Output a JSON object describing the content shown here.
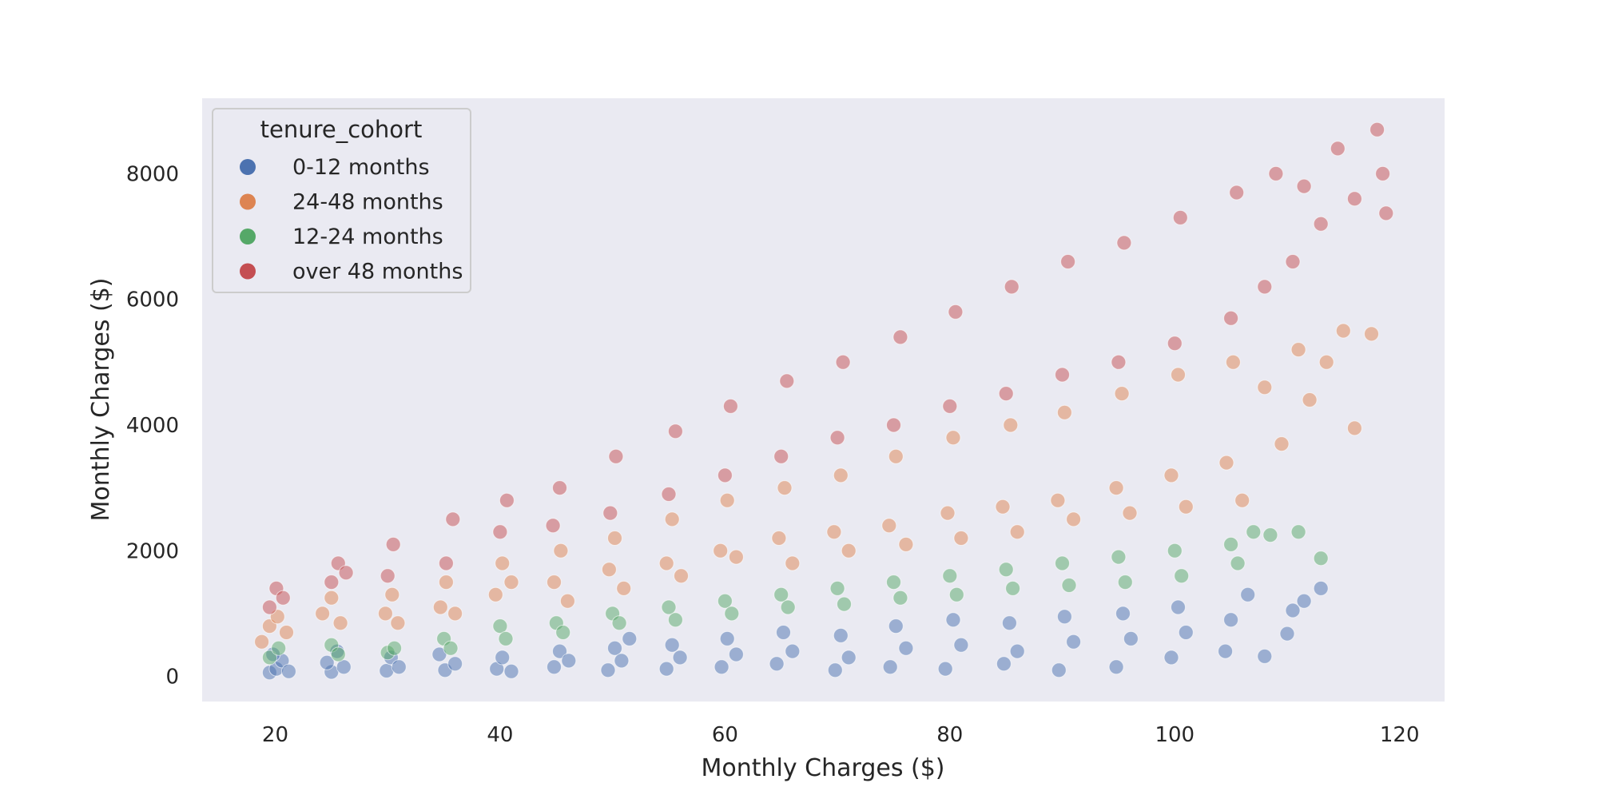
{
  "chart_data": {
    "type": "scatter",
    "xlabel": "Monthly Charges ($)",
    "ylabel": "Monthly Charges ($)",
    "xlim": [
      13.5,
      124
    ],
    "ylim": [
      -400,
      9200
    ],
    "xticks": [
      20,
      40,
      60,
      80,
      100,
      120
    ],
    "yticks": [
      0,
      2000,
      4000,
      6000,
      8000
    ],
    "grid": false,
    "legend": {
      "title": "tenure_cohort",
      "placement": "top-left",
      "entries": [
        "0-12 months",
        "24-48 months",
        "12-24 months",
        "over 48 months"
      ]
    },
    "point_alpha": 0.5,
    "series": [
      {
        "name": "0-12 months",
        "color": "#4c72b0",
        "points": [
          [
            19.5,
            60
          ],
          [
            20.1,
            120
          ],
          [
            20.6,
            250
          ],
          [
            21.2,
            80
          ],
          [
            19.8,
            350
          ],
          [
            25.0,
            70
          ],
          [
            24.6,
            220
          ],
          [
            25.5,
            400
          ],
          [
            26.1,
            150
          ],
          [
            29.9,
            90
          ],
          [
            30.3,
            300
          ],
          [
            31.0,
            150
          ],
          [
            35.1,
            100
          ],
          [
            34.6,
            350
          ],
          [
            36.0,
            200
          ],
          [
            39.7,
            120
          ],
          [
            40.2,
            300
          ],
          [
            41.0,
            80
          ],
          [
            44.8,
            150
          ],
          [
            45.3,
            400
          ],
          [
            46.1,
            250
          ],
          [
            49.6,
            100
          ],
          [
            50.2,
            450
          ],
          [
            50.8,
            250
          ],
          [
            51.5,
            600
          ],
          [
            54.8,
            120
          ],
          [
            55.3,
            500
          ],
          [
            56.0,
            300
          ],
          [
            59.7,
            150
          ],
          [
            60.2,
            600
          ],
          [
            61.0,
            350
          ],
          [
            64.6,
            200
          ],
          [
            65.2,
            700
          ],
          [
            66.0,
            400
          ],
          [
            69.8,
            100
          ],
          [
            70.3,
            650
          ],
          [
            71.0,
            300
          ],
          [
            74.7,
            150
          ],
          [
            75.2,
            800
          ],
          [
            76.1,
            450
          ],
          [
            79.6,
            120
          ],
          [
            80.3,
            900
          ],
          [
            81.0,
            500
          ],
          [
            84.8,
            200
          ],
          [
            85.3,
            850
          ],
          [
            86.0,
            400
          ],
          [
            89.7,
            100
          ],
          [
            90.2,
            950
          ],
          [
            91.0,
            550
          ],
          [
            94.8,
            150
          ],
          [
            95.4,
            1000
          ],
          [
            96.1,
            600
          ],
          [
            99.7,
            300
          ],
          [
            100.3,
            1100
          ],
          [
            101.0,
            700
          ],
          [
            104.5,
            400
          ],
          [
            105.0,
            900
          ],
          [
            106.5,
            1300
          ],
          [
            108.0,
            320
          ],
          [
            110.0,
            680
          ],
          [
            110.5,
            1050
          ],
          [
            111.5,
            1200
          ],
          [
            113.0,
            1400
          ]
        ]
      },
      {
        "name": "24-48 months",
        "color": "#dd8452",
        "points": [
          [
            18.8,
            550
          ],
          [
            19.5,
            800
          ],
          [
            20.2,
            950
          ],
          [
            21.0,
            700
          ],
          [
            24.2,
            1000
          ],
          [
            25.0,
            1250
          ],
          [
            25.8,
            850
          ],
          [
            29.8,
            1000
          ],
          [
            30.4,
            1300
          ],
          [
            30.9,
            850
          ],
          [
            34.7,
            1100
          ],
          [
            35.2,
            1500
          ],
          [
            36.0,
            1000
          ],
          [
            39.6,
            1300
          ],
          [
            40.2,
            1800
          ],
          [
            41.0,
            1500
          ],
          [
            44.8,
            1500
          ],
          [
            45.4,
            2000
          ],
          [
            46.0,
            1200
          ],
          [
            49.7,
            1700
          ],
          [
            50.2,
            2200
          ],
          [
            51.0,
            1400
          ],
          [
            54.8,
            1800
          ],
          [
            55.3,
            2500
          ],
          [
            56.1,
            1600
          ],
          [
            59.6,
            2000
          ],
          [
            60.2,
            2800
          ],
          [
            61.0,
            1900
          ],
          [
            64.8,
            2200
          ],
          [
            65.3,
            3000
          ],
          [
            66.0,
            1800
          ],
          [
            69.7,
            2300
          ],
          [
            70.3,
            3200
          ],
          [
            71.0,
            2000
          ],
          [
            74.6,
            2400
          ],
          [
            75.2,
            3500
          ],
          [
            76.1,
            2100
          ],
          [
            79.8,
            2600
          ],
          [
            80.3,
            3800
          ],
          [
            81.0,
            2200
          ],
          [
            84.7,
            2700
          ],
          [
            85.4,
            4000
          ],
          [
            86.0,
            2300
          ],
          [
            89.6,
            2800
          ],
          [
            90.2,
            4200
          ],
          [
            91.0,
            2500
          ],
          [
            94.8,
            3000
          ],
          [
            95.3,
            4500
          ],
          [
            96.0,
            2600
          ],
          [
            99.7,
            3200
          ],
          [
            100.3,
            4800
          ],
          [
            101.0,
            2700
          ],
          [
            104.6,
            3400
          ],
          [
            105.2,
            5000
          ],
          [
            106.0,
            2800
          ],
          [
            108.0,
            4600
          ],
          [
            109.5,
            3700
          ],
          [
            111.0,
            5200
          ],
          [
            112.0,
            4400
          ],
          [
            113.5,
            5000
          ],
          [
            115.0,
            5500
          ],
          [
            116.0,
            3950
          ],
          [
            117.5,
            5450
          ]
        ]
      },
      {
        "name": "12-24 months",
        "color": "#55a868",
        "points": [
          [
            19.5,
            300
          ],
          [
            20.3,
            450
          ],
          [
            25.0,
            500
          ],
          [
            25.6,
            350
          ],
          [
            30.0,
            380
          ],
          [
            30.6,
            450
          ],
          [
            35.0,
            600
          ],
          [
            35.6,
            450
          ],
          [
            40.0,
            800
          ],
          [
            40.5,
            600
          ],
          [
            45.0,
            850
          ],
          [
            45.6,
            700
          ],
          [
            50.0,
            1000
          ],
          [
            50.6,
            850
          ],
          [
            55.0,
            1100
          ],
          [
            55.6,
            900
          ],
          [
            60.0,
            1200
          ],
          [
            60.6,
            1000
          ],
          [
            65.0,
            1300
          ],
          [
            65.6,
            1100
          ],
          [
            70.0,
            1400
          ],
          [
            70.6,
            1150
          ],
          [
            75.0,
            1500
          ],
          [
            75.6,
            1250
          ],
          [
            80.0,
            1600
          ],
          [
            80.6,
            1300
          ],
          [
            85.0,
            1700
          ],
          [
            85.6,
            1400
          ],
          [
            90.0,
            1800
          ],
          [
            90.6,
            1450
          ],
          [
            95.0,
            1900
          ],
          [
            95.6,
            1500
          ],
          [
            100.0,
            2000
          ],
          [
            100.6,
            1600
          ],
          [
            105.0,
            2100
          ],
          [
            105.6,
            1800
          ],
          [
            107.0,
            2300
          ],
          [
            108.5,
            2250
          ],
          [
            111.0,
            2300
          ],
          [
            113.0,
            1880
          ]
        ]
      },
      {
        "name": "over 48 months",
        "color": "#c44e52",
        "points": [
          [
            19.5,
            1100
          ],
          [
            20.1,
            1400
          ],
          [
            20.7,
            1250
          ],
          [
            25.0,
            1500
          ],
          [
            25.6,
            1800
          ],
          [
            26.3,
            1650
          ],
          [
            30.0,
            1600
          ],
          [
            30.5,
            2100
          ],
          [
            35.2,
            1800
          ],
          [
            35.8,
            2500
          ],
          [
            40.0,
            2300
          ],
          [
            40.6,
            2800
          ],
          [
            44.7,
            2400
          ],
          [
            45.3,
            3000
          ],
          [
            49.8,
            2600
          ],
          [
            50.3,
            3500
          ],
          [
            55.0,
            2900
          ],
          [
            55.6,
            3900
          ],
          [
            60.0,
            3200
          ],
          [
            60.5,
            4300
          ],
          [
            65.0,
            3500
          ],
          [
            65.5,
            4700
          ],
          [
            70.0,
            3800
          ],
          [
            70.5,
            5000
          ],
          [
            75.0,
            4000
          ],
          [
            75.6,
            5400
          ],
          [
            80.0,
            4300
          ],
          [
            80.5,
            5800
          ],
          [
            85.0,
            4500
          ],
          [
            85.5,
            6200
          ],
          [
            90.0,
            4800
          ],
          [
            90.5,
            6600
          ],
          [
            95.0,
            5000
          ],
          [
            95.5,
            6900
          ],
          [
            100.0,
            5300
          ],
          [
            100.5,
            7300
          ],
          [
            105.0,
            5700
          ],
          [
            105.5,
            7700
          ],
          [
            108.0,
            6200
          ],
          [
            109.0,
            8000
          ],
          [
            110.5,
            6600
          ],
          [
            111.5,
            7800
          ],
          [
            113.0,
            7200
          ],
          [
            114.5,
            8400
          ],
          [
            116.0,
            7600
          ],
          [
            118.0,
            8700
          ],
          [
            118.5,
            8000
          ],
          [
            118.8,
            7370
          ]
        ]
      }
    ]
  }
}
